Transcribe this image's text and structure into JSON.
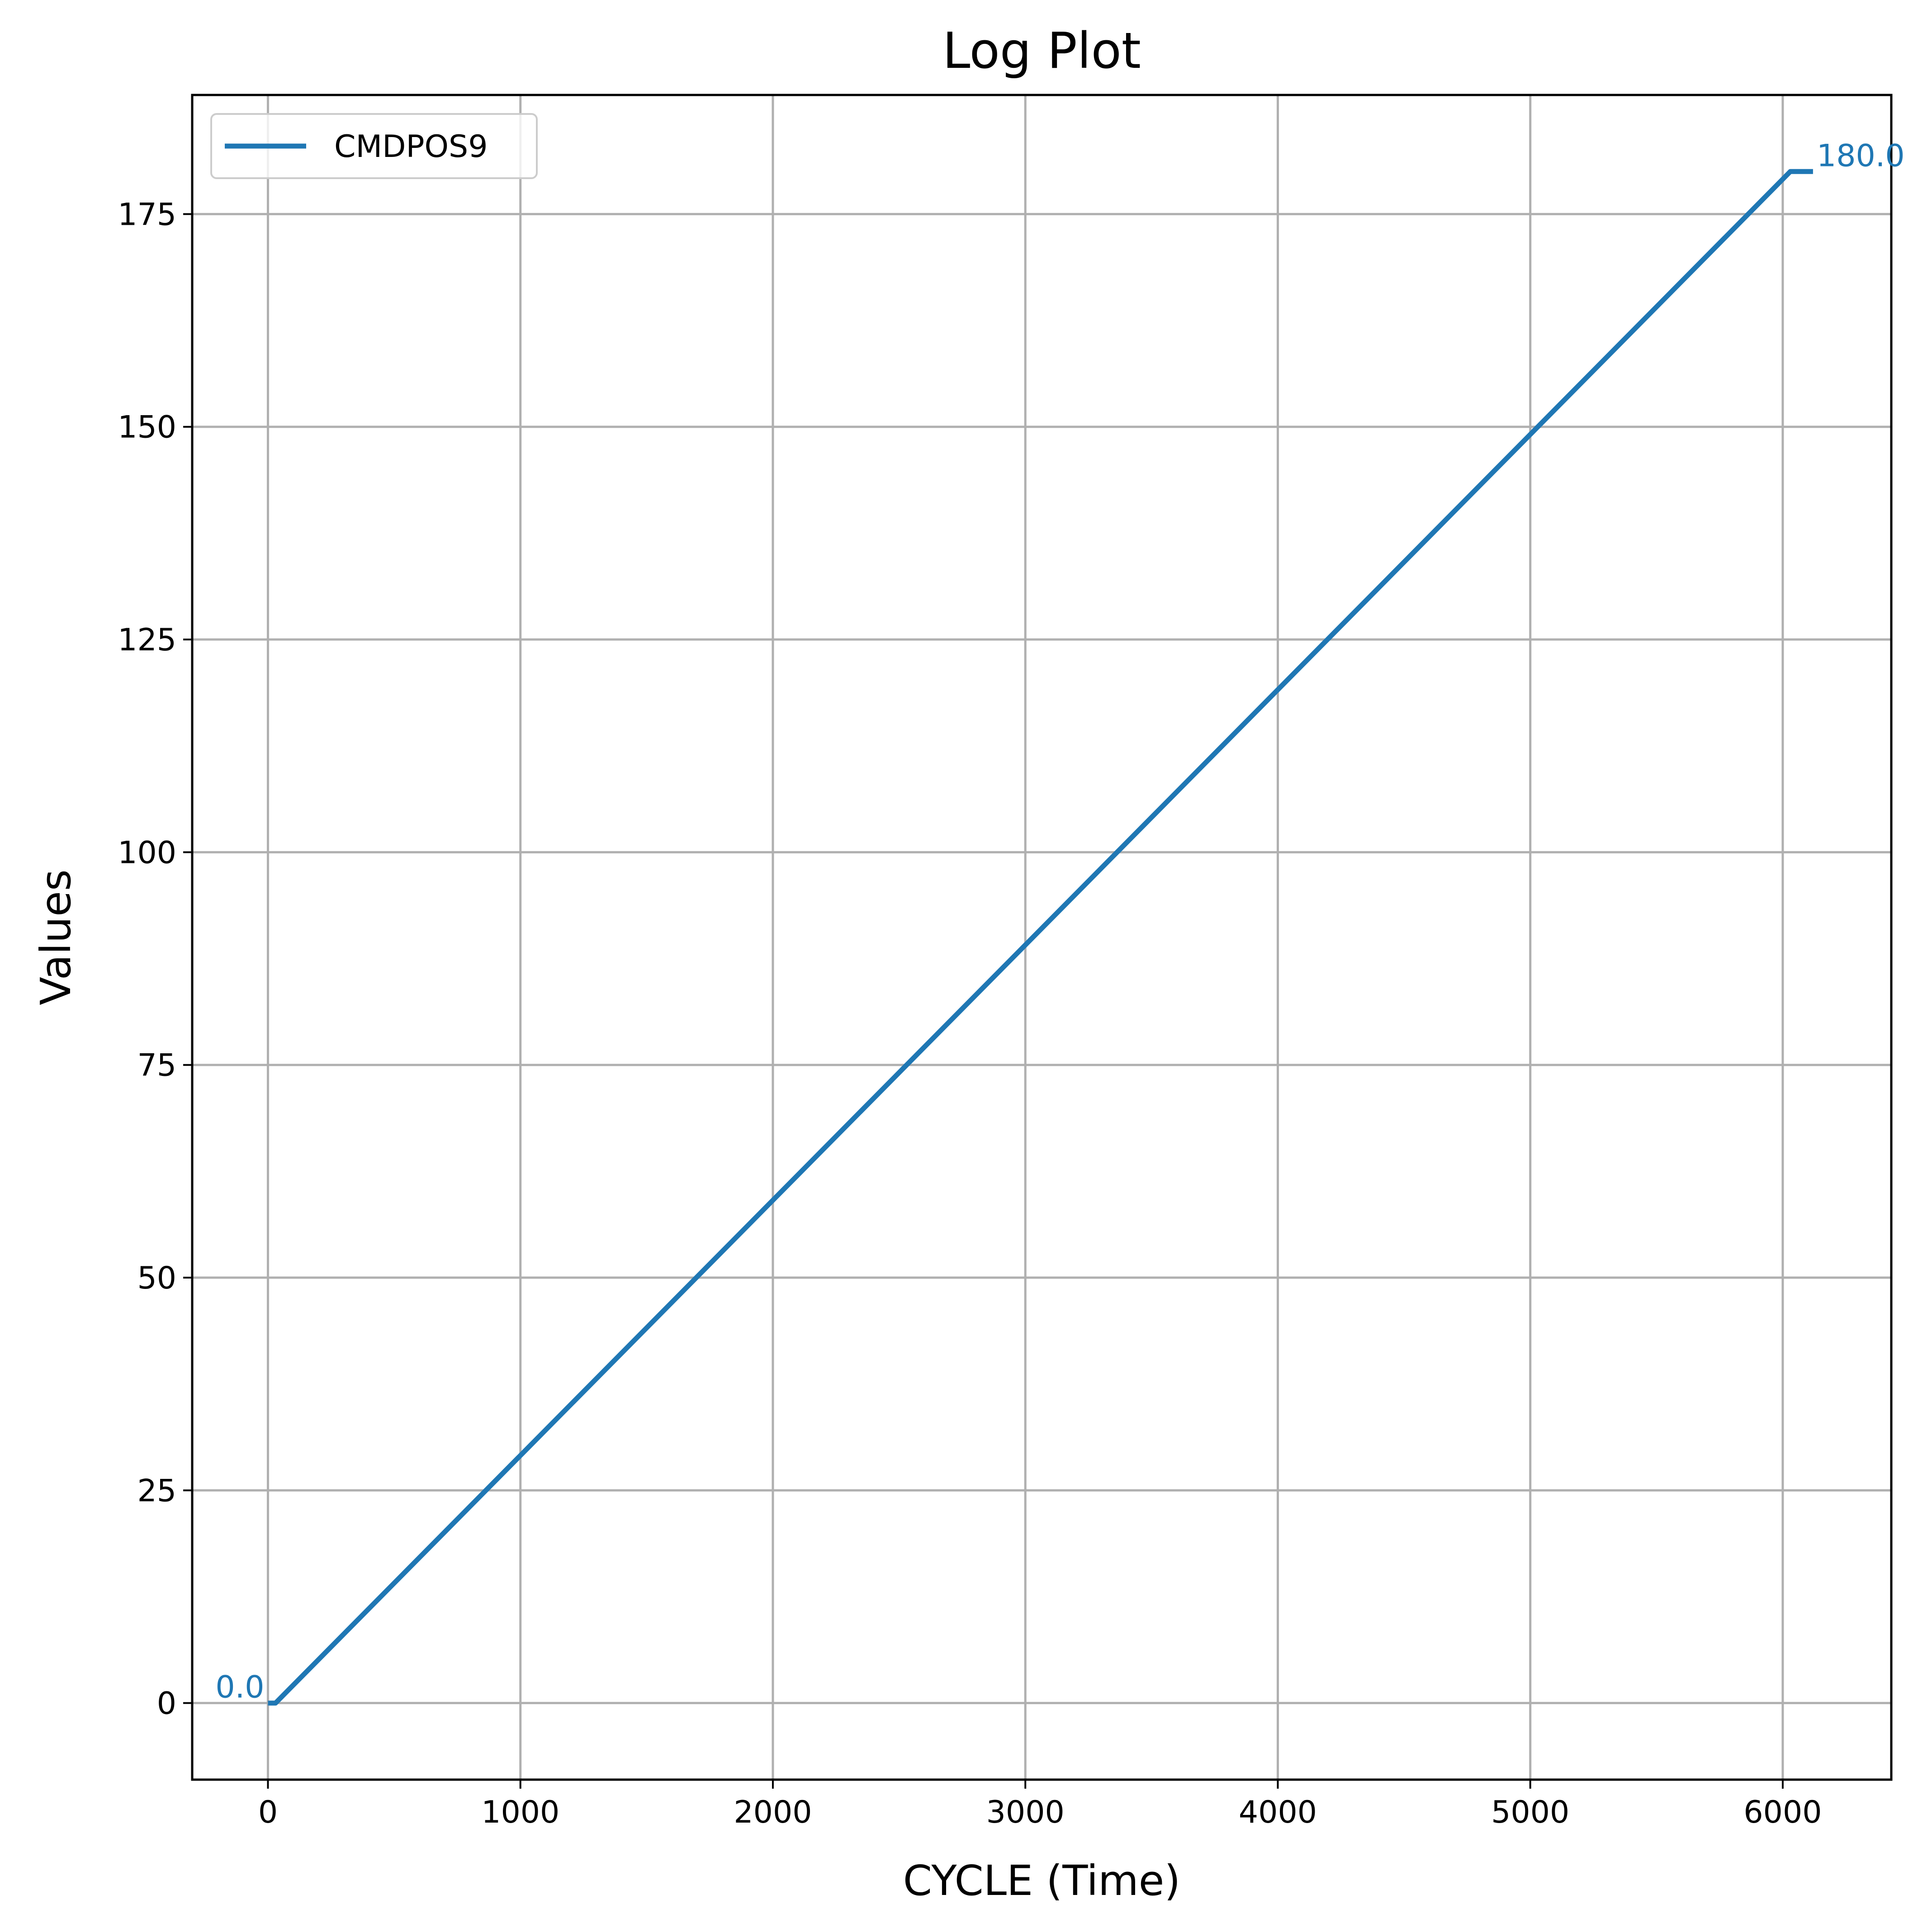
{
  "chart_data": {
    "type": "line",
    "title": "Log Plot",
    "xlabel": "CYCLE (Time)",
    "ylabel": "Values",
    "xlim": [
      -300,
      6430
    ],
    "ylim": [
      -9,
      189
    ],
    "x_ticks": [
      0,
      1000,
      2000,
      3000,
      4000,
      5000,
      6000
    ],
    "y_ticks": [
      0,
      25,
      50,
      75,
      100,
      125,
      150,
      175
    ],
    "grid": true,
    "legend_position": "top-left",
    "series": [
      {
        "name": "CMDPOS9",
        "color": "#1f77b4",
        "points": [
          [
            0,
            0
          ],
          [
            30,
            0
          ],
          [
            6030,
            180
          ],
          [
            6120,
            180
          ]
        ]
      }
    ],
    "annotations": [
      {
        "text": "0.0",
        "x": 0,
        "y": 0,
        "anchor": "end"
      },
      {
        "text": "180.0",
        "x": 6120,
        "y": 180,
        "anchor": "start"
      }
    ]
  }
}
